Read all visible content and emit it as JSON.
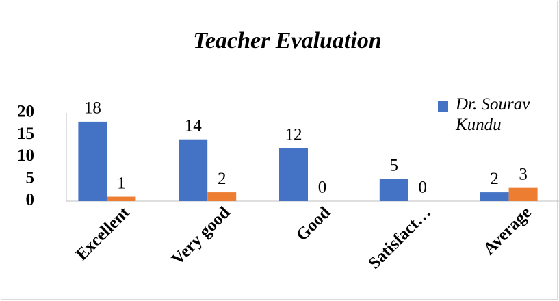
{
  "chart_data": {
    "type": "bar",
    "title": "Teacher Evaluation",
    "categories": [
      "Excellent",
      "Very good",
      "Good",
      "Satisfact…",
      "Average"
    ],
    "series": [
      {
        "name": "Dr. Sourav Kundu",
        "color": "#4472c4",
        "values": [
          18,
          14,
          12,
          5,
          2
        ]
      },
      {
        "color": "#ed7d31",
        "values": [
          1,
          2,
          0,
          0,
          3
        ]
      }
    ],
    "ylim": [
      0,
      20
    ],
    "yticks": [
      0,
      5,
      10,
      15,
      20
    ],
    "grid": false,
    "legend": "right"
  }
}
